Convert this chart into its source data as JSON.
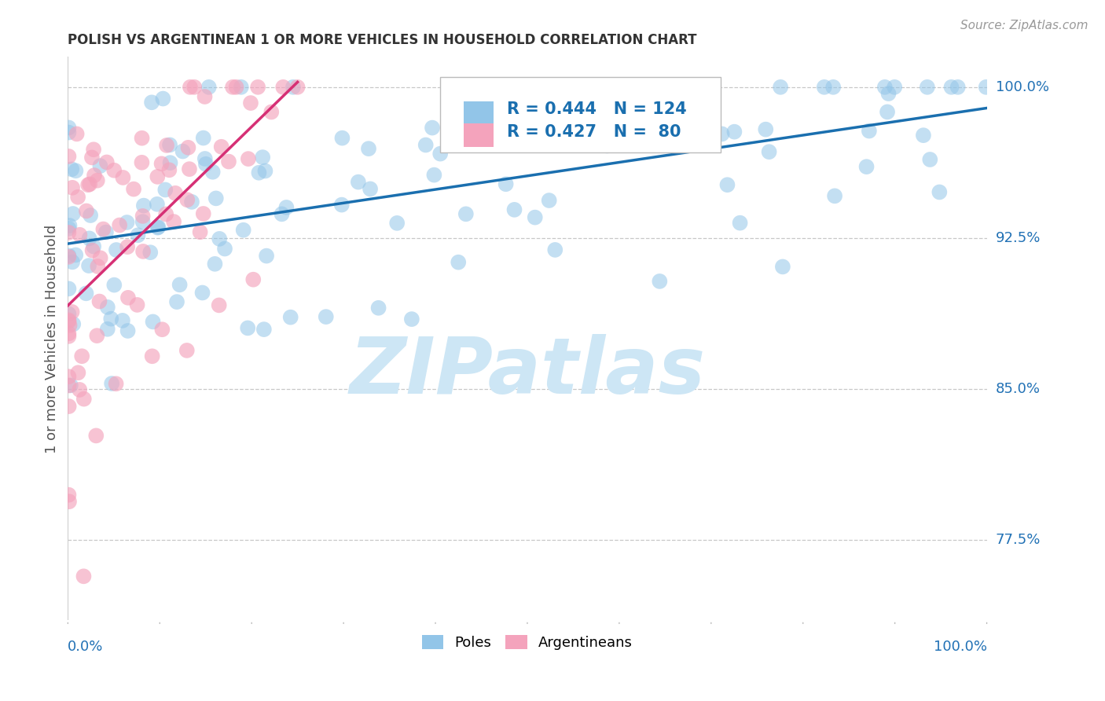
{
  "title": "POLISH VS ARGENTINEAN 1 OR MORE VEHICLES IN HOUSEHOLD CORRELATION CHART",
  "source": "Source: ZipAtlas.com",
  "ylabel": "1 or more Vehicles in Household",
  "ytick_labels": [
    "100.0%",
    "92.5%",
    "85.0%",
    "77.5%"
  ],
  "ytick_values": [
    1.0,
    0.925,
    0.85,
    0.775
  ],
  "blue_color": "#92c5e8",
  "pink_color": "#f4a3bc",
  "line_blue": "#1a6faf",
  "line_pink": "#d63075",
  "watermark_text": "ZIPatlas",
  "watermark_color": "#cde6f5",
  "blue_R": 0.444,
  "blue_N": 124,
  "pink_R": 0.427,
  "pink_N": 80,
  "xmin": 0.0,
  "xmax": 1.0,
  "ymin": 0.735,
  "ymax": 1.015,
  "grid_color": "#bbbbbb",
  "background_color": "#ffffff",
  "title_color": "#333333",
  "source_color": "#999999",
  "axis_label_color": "#2171b5",
  "ylabel_color": "#555555"
}
